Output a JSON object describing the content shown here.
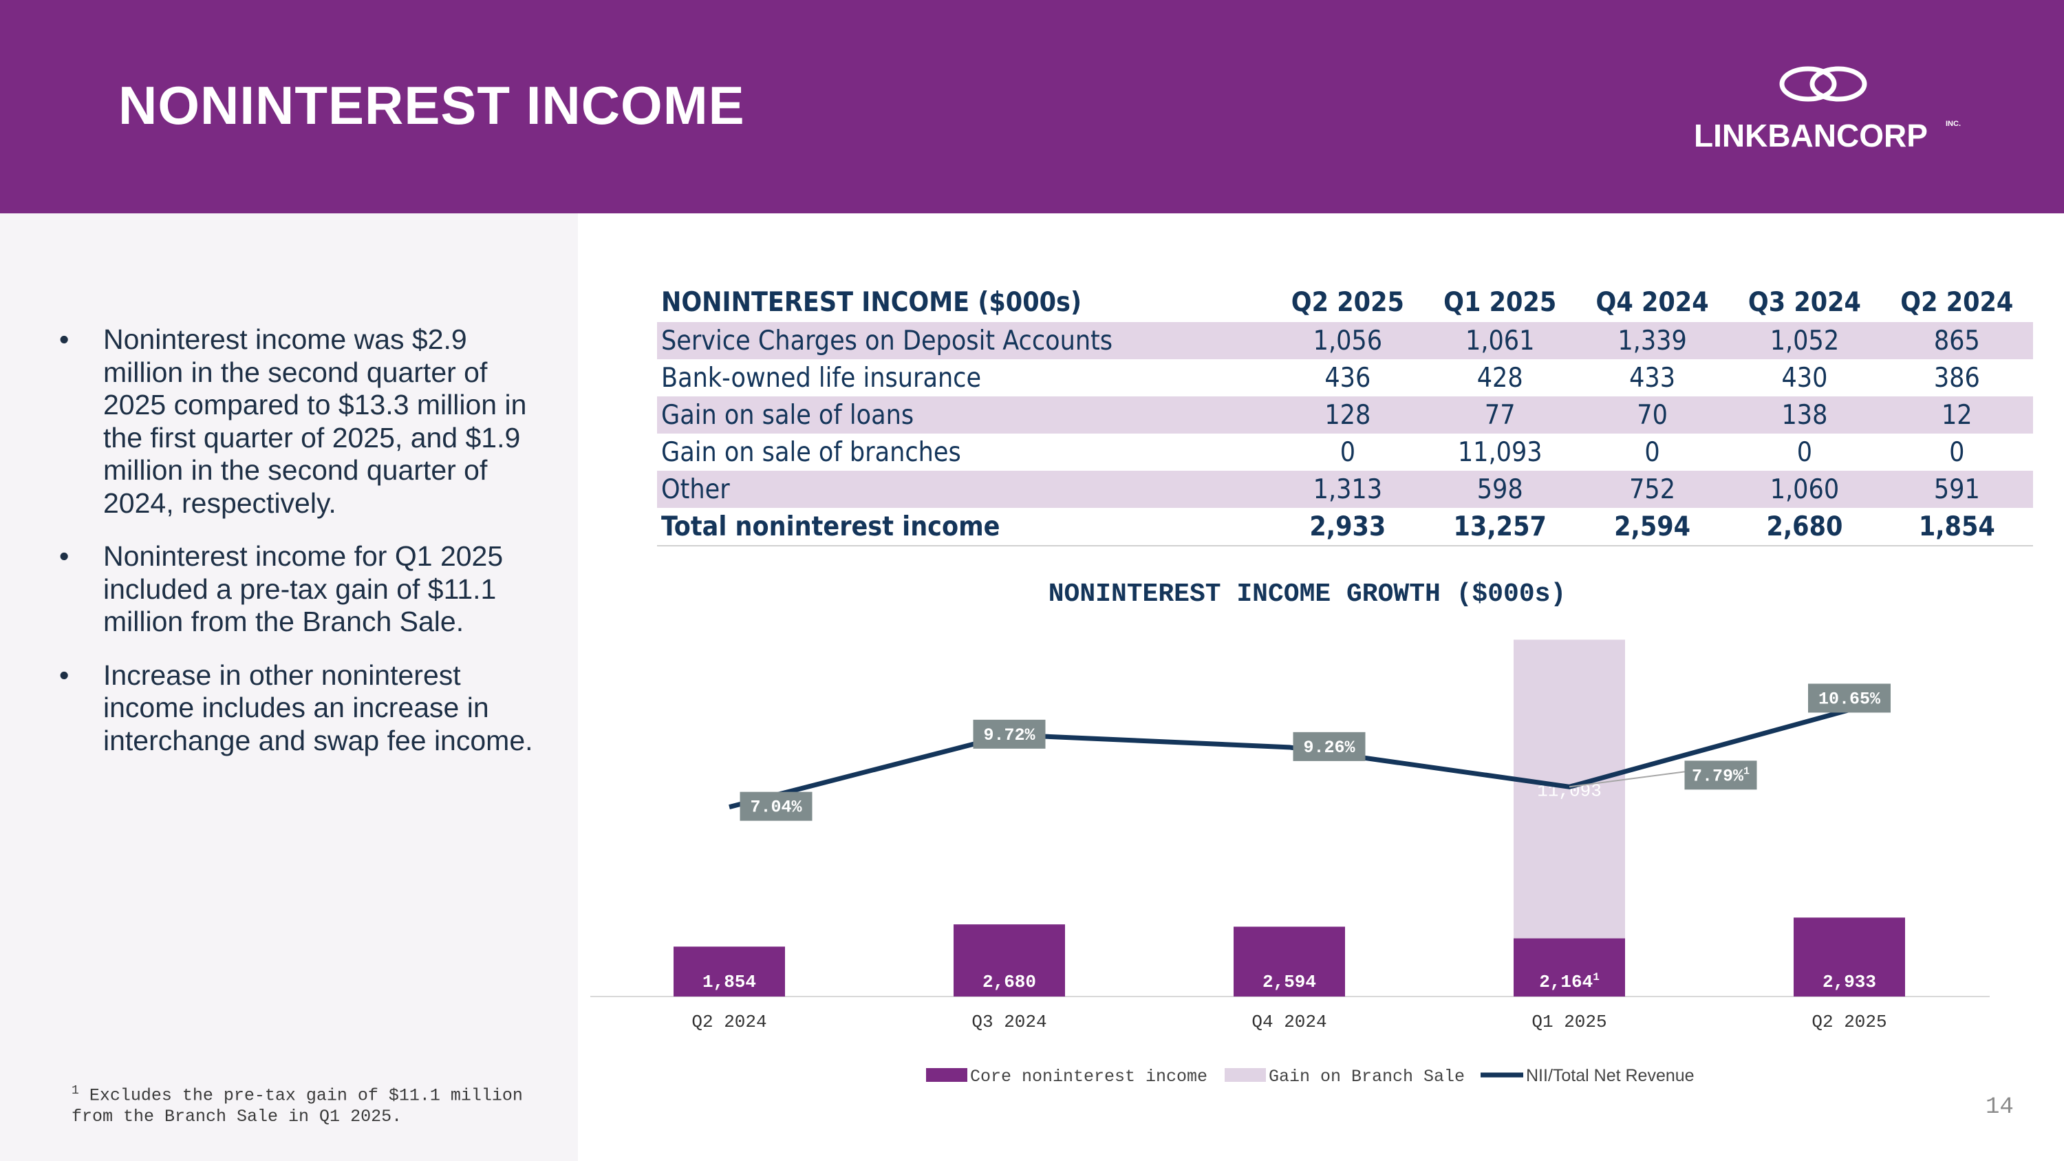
{
  "header": {
    "title": "NONINTEREST INCOME",
    "logo_text": "LINKBANCORP",
    "logo_suffix": "INC.",
    "accent": "#7b2a83"
  },
  "bullets": [
    "Noninterest income was $2.9 million in the second quarter of 2025 compared to $13.3 million in the first quarter of 2025, and $1.9 million in the second quarter of 2024, respectively.",
    "Noninterest income for Q1 2025 included a pre-tax gain of $11.1 million from the Branch Sale.",
    "Increase in other noninterest income includes an increase in interchange and swap fee income."
  ],
  "footnote": {
    "marker": "1",
    "text": "Excludes the pre-tax gain of $11.1 million from the Branch Sale in Q1 2025."
  },
  "table": {
    "headers": [
      "NONINTEREST INCOME ($000s)",
      "Q2 2025",
      "Q1 2025",
      "Q4 2024",
      "Q3 2024",
      "Q2 2024"
    ],
    "rows": [
      [
        "Service Charges on Deposit Accounts",
        "1,056",
        "1,061",
        "1,339",
        "1,052",
        "865"
      ],
      [
        "Bank-owned life insurance",
        "436",
        "428",
        "433",
        "430",
        "386"
      ],
      [
        "Gain on sale of loans",
        "128",
        "77",
        "70",
        "138",
        "12"
      ],
      [
        "Gain on sale of branches",
        "0",
        "11,093",
        "0",
        "0",
        "0"
      ],
      [
        "Other",
        "1,313",
        "598",
        "752",
        "1,060",
        "591"
      ]
    ],
    "total": [
      "Total noninterest income",
      "2,933",
      "13,257",
      "2,594",
      "2,680",
      "1,854"
    ]
  },
  "chart_data": {
    "type": "bar",
    "title": "NONINTEREST INCOME GROWTH ($000s)",
    "categories": [
      "Q2 2024",
      "Q3 2024",
      "Q4 2024",
      "Q1 2025",
      "Q2 2025"
    ],
    "series": [
      {
        "name": "Core noninterest income",
        "values": [
          1854,
          2680,
          2594,
          2164,
          2933
        ],
        "labels": [
          "1,854",
          "2,680",
          "2,594",
          "2,164",
          "2,933"
        ],
        "color": "#7b2a83"
      },
      {
        "name": "Gain on Branch Sale",
        "values": [
          0,
          0,
          0,
          11093,
          0
        ],
        "labels": [
          "",
          "",
          "",
          "11,093",
          ""
        ],
        "color": "#e0d3e4"
      },
      {
        "name": "NII/Total Net Revenue",
        "type": "line",
        "values": [
          7.04,
          9.72,
          9.26,
          7.79,
          10.65
        ],
        "labels": [
          "7.04%",
          "9.72%",
          "9.26%",
          "7.79%",
          "10.65%"
        ],
        "color": "#14355a"
      }
    ],
    "footnote_markers": {
      "core_index": 3,
      "line_index": 3,
      "marker": "1"
    },
    "ylim": [
      0,
      13500
    ],
    "line_ylim": [
      0,
      13.5
    ],
    "legend": "bottom"
  },
  "page_number": "14"
}
